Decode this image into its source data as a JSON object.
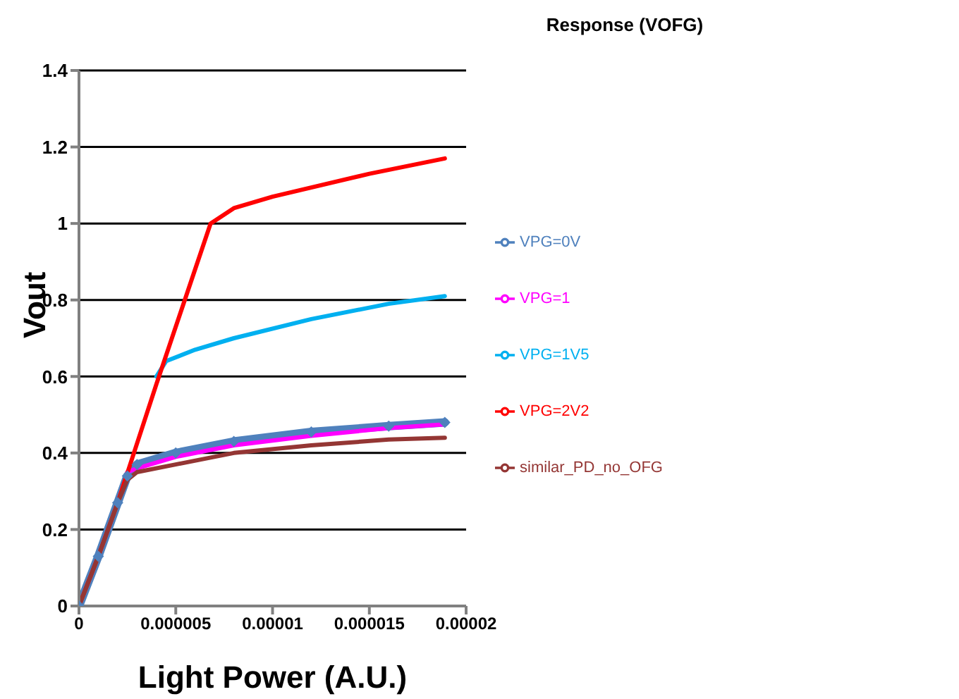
{
  "chart_data": {
    "type": "line",
    "title": "Response (VOFG)",
    "xlabel": "Light Power (A.U.)",
    "ylabel": "Vout",
    "xlim": [
      0,
      2e-05
    ],
    "xticks": [
      0,
      {
        "value": 5e-06,
        "label": "0.000005"
      },
      {
        "value": 1e-05,
        "label": "0.00001"
      },
      {
        "value": 1.5e-05,
        "label": "0.000015"
      },
      {
        "value": 2e-05,
        "label": "0.00002"
      }
    ],
    "ylim": [
      0,
      1.4
    ],
    "yticks": [
      0,
      0.2,
      0.4,
      0.6,
      0.8,
      1,
      1.2,
      1.4
    ],
    "grid": "y",
    "legend": "right",
    "marker": "none",
    "series": [
      {
        "name": "VPG=0V",
        "color": "#4f81bd",
        "marker": "diamond",
        "x": [
          0,
          1e-06,
          2e-06,
          2.5e-06,
          3e-06,
          5e-06,
          8e-06,
          1.2e-05,
          1.6e-05,
          1.89e-05
        ],
        "values": [
          0,
          0.13,
          0.27,
          0.34,
          0.37,
          0.4,
          0.43,
          0.455,
          0.47,
          0.48
        ]
      },
      {
        "name": "VPG=1",
        "color": "#ff00ff",
        "x": [
          2.5e-06,
          3e-06,
          5e-06,
          8e-06,
          1.2e-05,
          1.6e-05,
          1.89e-05
        ],
        "values": [
          0.35,
          0.36,
          0.39,
          0.42,
          0.445,
          0.465,
          0.475
        ]
      },
      {
        "name": "VPG=1V5",
        "color": "#00b0f0",
        "x": [
          4e-06,
          4.5e-06,
          6e-06,
          8e-06,
          1.2e-05,
          1.6e-05,
          1.89e-05
        ],
        "values": [
          0.6,
          0.64,
          0.67,
          0.7,
          0.75,
          0.79,
          0.81
        ]
      },
      {
        "name": "VPG=2V2",
        "color": "#ff0000",
        "x": [
          0,
          1e-06,
          2e-06,
          4e-06,
          6e-06,
          6.8e-06,
          8e-06,
          1e-05,
          1.5e-05,
          1.89e-05
        ],
        "values": [
          0,
          0.13,
          0.27,
          0.58,
          0.88,
          1.0,
          1.04,
          1.07,
          1.13,
          1.17
        ]
      },
      {
        "name": "similar_PD_no_OFG",
        "color": "#943634",
        "x": [
          0,
          1e-06,
          2e-06,
          2.5e-06,
          3e-06,
          5e-06,
          8e-06,
          1.2e-05,
          1.6e-05,
          1.89e-05
        ],
        "values": [
          0,
          0.13,
          0.27,
          0.33,
          0.35,
          0.37,
          0.4,
          0.42,
          0.435,
          0.44
        ]
      }
    ]
  }
}
